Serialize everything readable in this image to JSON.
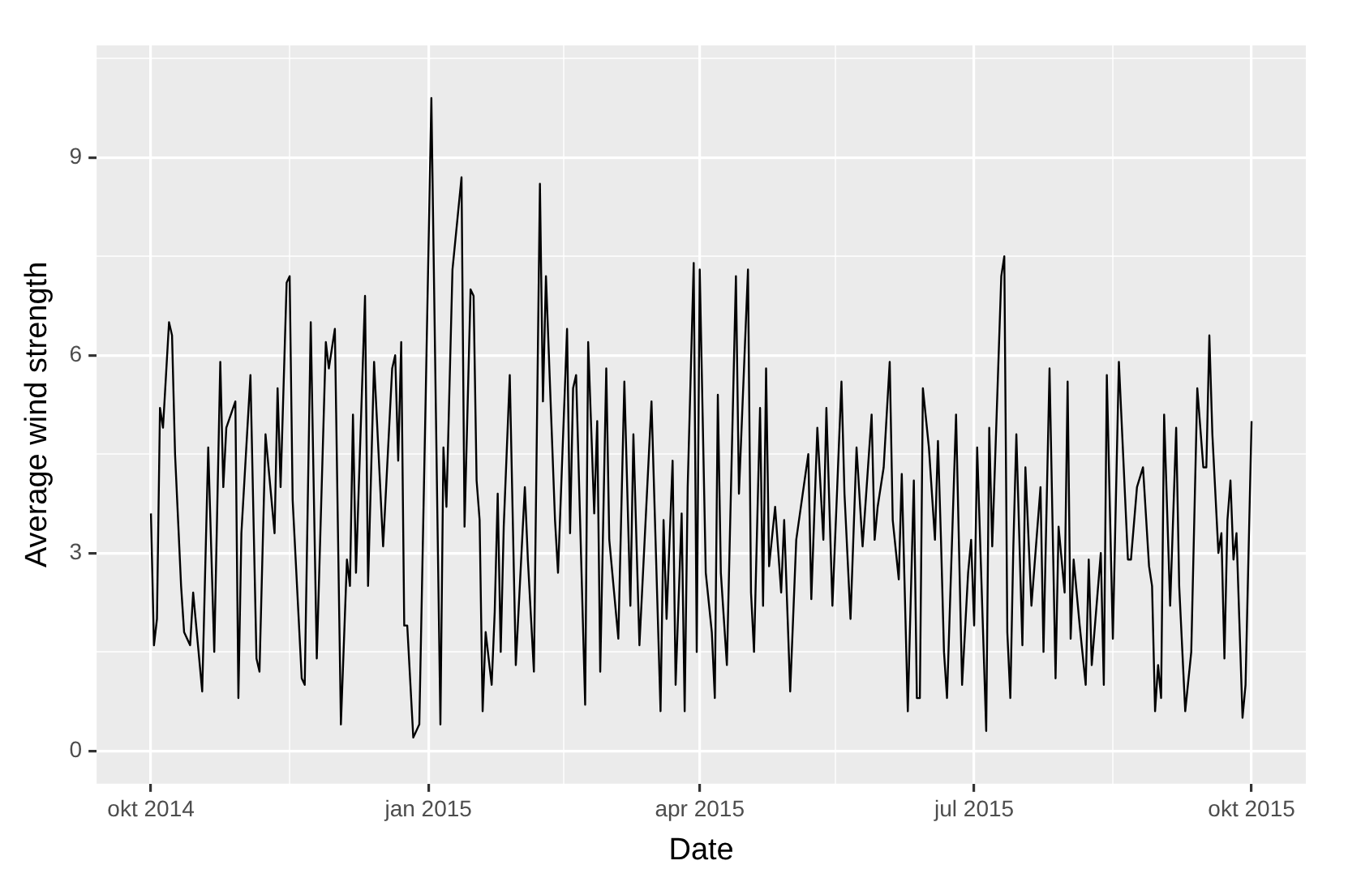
{
  "chart_data": {
    "type": "line",
    "xlabel": "Date",
    "ylabel": "Average wind strength",
    "color": "#000000",
    "grid": true,
    "xlim": [
      "2014-09-13",
      "2015-10-19"
    ],
    "ylim": [
      -0.5,
      10.7
    ],
    "xticks": [
      {
        "value": "2014-10-01",
        "label": "okt 2014"
      },
      {
        "value": "2014-11-16",
        "label": null
      },
      {
        "value": "2015-01-01",
        "label": "jan 2015"
      },
      {
        "value": "2015-02-15",
        "label": null
      },
      {
        "value": "2015-04-01",
        "label": "apr 2015"
      },
      {
        "value": "2015-05-16",
        "label": null
      },
      {
        "value": "2015-07-01",
        "label": "jul 2015"
      },
      {
        "value": "2015-08-16",
        "label": null
      },
      {
        "value": "2015-10-01",
        "label": "okt 2015"
      }
    ],
    "yticks": [
      0,
      {
        "value": 1.5,
        "label": null
      },
      3,
      {
        "value": 4.5,
        "label": null
      },
      6,
      {
        "value": 7.5,
        "label": null
      },
      9,
      {
        "value": 10.5,
        "label": null
      }
    ],
    "x": [
      "2014-10-01",
      "2014-10-02",
      "2014-10-03",
      "2014-10-04",
      "2014-10-05",
      "2014-10-07",
      "2014-10-08",
      "2014-10-09",
      "2014-10-11",
      "2014-10-12",
      "2014-10-14",
      "2014-10-15",
      "2014-10-18",
      "2014-10-20",
      "2014-10-22",
      "2014-10-24",
      "2014-10-25",
      "2014-10-26",
      "2014-10-29",
      "2014-10-30",
      "2014-10-31",
      "2014-11-03",
      "2014-11-05",
      "2014-11-06",
      "2014-11-08",
      "2014-11-11",
      "2014-11-12",
      "2014-11-13",
      "2014-11-15",
      "2014-11-16",
      "2014-11-17",
      "2014-11-20",
      "2014-11-21",
      "2014-11-23",
      "2014-11-25",
      "2014-11-28",
      "2014-11-29",
      "2014-12-01",
      "2014-12-03",
      "2014-12-05",
      "2014-12-06",
      "2014-12-07",
      "2014-12-08",
      "2014-12-11",
      "2014-12-12",
      "2014-12-14",
      "2014-12-17",
      "2014-12-20",
      "2014-12-21",
      "2014-12-22",
      "2014-12-23",
      "2014-12-24",
      "2014-12-25",
      "2014-12-27",
      "2014-12-29",
      "2014-12-31",
      "2015-01-02",
      "2015-01-05",
      "2015-01-06",
      "2015-01-07",
      "2015-01-09",
      "2015-01-12",
      "2015-01-13",
      "2015-01-15",
      "2015-01-16",
      "2015-01-17",
      "2015-01-18",
      "2015-01-19",
      "2015-01-20",
      "2015-01-22",
      "2015-01-23",
      "2015-01-24",
      "2015-01-25",
      "2015-01-26",
      "2015-01-28",
      "2015-01-30",
      "2015-02-02",
      "2015-02-03",
      "2015-02-05",
      "2015-02-07",
      "2015-02-08",
      "2015-02-09",
      "2015-02-12",
      "2015-02-13",
      "2015-02-16",
      "2015-02-17",
      "2015-02-18",
      "2015-02-19",
      "2015-02-22",
      "2015-02-23",
      "2015-02-25",
      "2015-02-26",
      "2015-02-27",
      "2015-03-01",
      "2015-03-02",
      "2015-03-05",
      "2015-03-07",
      "2015-03-09",
      "2015-03-10",
      "2015-03-12",
      "2015-03-16",
      "2015-03-19",
      "2015-03-20",
      "2015-03-21",
      "2015-03-23",
      "2015-03-24",
      "2015-03-26",
      "2015-03-27",
      "2015-03-28",
      "2015-03-30",
      "2015-03-31",
      "2015-04-01",
      "2015-04-03",
      "2015-04-05",
      "2015-04-06",
      "2015-04-07",
      "2015-04-08",
      "2015-04-10",
      "2015-04-13",
      "2015-04-14",
      "2015-04-17",
      "2015-04-18",
      "2015-04-19",
      "2015-04-21",
      "2015-04-22",
      "2015-04-23",
      "2015-04-24",
      "2015-04-26",
      "2015-04-28",
      "2015-04-29",
      "2015-05-01",
      "2015-05-03",
      "2015-05-07",
      "2015-05-08",
      "2015-05-10",
      "2015-05-12",
      "2015-05-13",
      "2015-05-15",
      "2015-05-18",
      "2015-05-19",
      "2015-05-21",
      "2015-05-23",
      "2015-05-25",
      "2015-05-28",
      "2015-05-29",
      "2015-05-30",
      "2015-06-01",
      "2015-06-03",
      "2015-06-04",
      "2015-06-06",
      "2015-06-07",
      "2015-06-09",
      "2015-06-11",
      "2015-06-12",
      "2015-06-13",
      "2015-06-14",
      "2015-06-16",
      "2015-06-18",
      "2015-06-19",
      "2015-06-20",
      "2015-06-21",
      "2015-06-22",
      "2015-06-25",
      "2015-06-27",
      "2015-06-29",
      "2015-06-30",
      "2015-07-01",
      "2015-07-02",
      "2015-07-05",
      "2015-07-06",
      "2015-07-07",
      "2015-07-10",
      "2015-07-11",
      "2015-07-12",
      "2015-07-13",
      "2015-07-14",
      "2015-07-15",
      "2015-07-17",
      "2015-07-18",
      "2015-07-20",
      "2015-07-23",
      "2015-07-24",
      "2015-07-26",
      "2015-07-28",
      "2015-07-29",
      "2015-07-31",
      "2015-08-01",
      "2015-08-02",
      "2015-08-03",
      "2015-08-05",
      "2015-08-07",
      "2015-08-08",
      "2015-08-09",
      "2015-08-12",
      "2015-08-13",
      "2015-08-14",
      "2015-08-16",
      "2015-08-18",
      "2015-08-21",
      "2015-08-22",
      "2015-08-24",
      "2015-08-26",
      "2015-08-28",
      "2015-08-29",
      "2015-08-30",
      "2015-08-31",
      "2015-09-01",
      "2015-09-02",
      "2015-09-04",
      "2015-09-06",
      "2015-09-07",
      "2015-09-09",
      "2015-09-11",
      "2015-09-13",
      "2015-09-15",
      "2015-09-16",
      "2015-09-17",
      "2015-09-18",
      "2015-09-20",
      "2015-09-21",
      "2015-09-22",
      "2015-09-23",
      "2015-09-24",
      "2015-09-25",
      "2015-09-26",
      "2015-09-28",
      "2015-09-29",
      "2015-10-01"
    ],
    "values": [
      3.6,
      1.6,
      2.0,
      5.2,
      4.9,
      6.5,
      6.3,
      4.5,
      2.5,
      1.8,
      1.6,
      2.4,
      0.9,
      4.6,
      1.5,
      5.9,
      4.0,
      4.9,
      5.3,
      0.8,
      3.3,
      5.7,
      1.4,
      1.2,
      4.8,
      3.3,
      5.5,
      4.0,
      7.1,
      7.2,
      3.8,
      1.1,
      1.0,
      6.5,
      1.4,
      6.2,
      5.8,
      6.4,
      0.4,
      2.9,
      2.5,
      5.1,
      2.7,
      6.9,
      2.5,
      5.9,
      3.1,
      5.8,
      6.0,
      4.4,
      6.2,
      1.9,
      1.9,
      0.2,
      0.4,
      5.1,
      9.9,
      0.4,
      4.6,
      3.7,
      7.3,
      8.7,
      3.4,
      7.0,
      6.9,
      4.1,
      3.5,
      0.6,
      1.8,
      1.0,
      2.1,
      3.9,
      1.5,
      3.4,
      5.7,
      1.3,
      4.0,
      2.9,
      1.2,
      8.6,
      5.3,
      7.2,
      3.5,
      2.7,
      6.4,
      3.3,
      5.5,
      5.7,
      0.7,
      6.2,
      3.6,
      5.0,
      1.2,
      5.8,
      3.2,
      1.7,
      5.6,
      2.2,
      4.8,
      1.6,
      5.3,
      0.6,
      3.5,
      2.0,
      4.4,
      1.0,
      3.6,
      0.6,
      4.0,
      7.4,
      1.5,
      7.3,
      2.7,
      1.8,
      0.8,
      5.4,
      2.7,
      1.3,
      7.2,
      3.9,
      7.3,
      2.4,
      1.5,
      5.2,
      2.2,
      5.8,
      2.8,
      3.7,
      2.4,
      3.5,
      0.9,
      3.2,
      4.5,
      2.3,
      4.9,
      3.2,
      5.2,
      2.2,
      5.6,
      3.9,
      2.0,
      4.6,
      3.1,
      5.1,
      3.2,
      3.7,
      4.3,
      5.9,
      3.5,
      2.6,
      4.2,
      0.6,
      4.1,
      0.8,
      0.8,
      5.5,
      4.6,
      3.2,
      4.7,
      3.2,
      1.5,
      0.8,
      5.1,
      1.0,
      2.7,
      3.2,
      1.9,
      4.6,
      0.3,
      4.9,
      3.1,
      7.2,
      7.5,
      1.8,
      0.8,
      3.1,
      4.8,
      1.6,
      4.3,
      2.2,
      4.0,
      1.5,
      5.8,
      1.1,
      3.4,
      2.4,
      5.6,
      1.7,
      2.9,
      1.9,
      1.0,
      2.9,
      1.3,
      3.0,
      1.0,
      5.7,
      1.7,
      5.9,
      2.9,
      2.9,
      4.0,
      4.3,
      2.8,
      2.5,
      0.6,
      1.3,
      0.8,
      5.1,
      2.2,
      4.9,
      2.5,
      0.6,
      1.5,
      5.5,
      4.3,
      4.3,
      6.3,
      4.8,
      3.0,
      3.3,
      1.4,
      3.5,
      4.1,
      2.9,
      3.3,
      0.5,
      1.0,
      5.0
    ]
  }
}
